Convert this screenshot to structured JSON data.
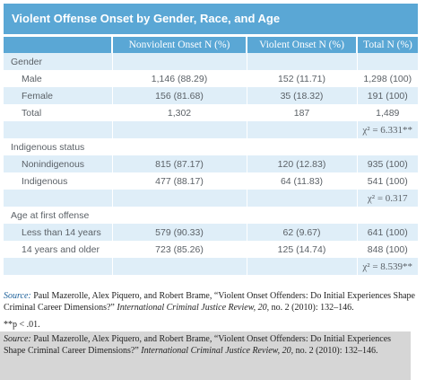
{
  "title": "Violent Offense Onset by Gender, Race, and Age",
  "columns": [
    "",
    "Nonviolent Onset N (%)",
    "Violent Onset N (%)",
    "Total N (%)"
  ],
  "sections": [
    {
      "label": "Gender",
      "rows": [
        {
          "label": "Male",
          "nonviolent": "1,146 (88.29)",
          "violent": "152 (11.71)",
          "total": "1,298 (100)"
        },
        {
          "label": "Female",
          "nonviolent": "156 (81.68)",
          "violent": "35 (18.32)",
          "total": "191 (100)"
        },
        {
          "label": "Total",
          "nonviolent": "1,302",
          "violent": "187",
          "total": "1,489"
        }
      ],
      "stat": "χ² = 6.331**"
    },
    {
      "label": "Indigenous status",
      "rows": [
        {
          "label": "Nonindigenous",
          "nonviolent": "815 (87.17)",
          "violent": "120 (12.83)",
          "total": "935 (100)"
        },
        {
          "label": "Indigenous",
          "nonviolent": "477 (88.17)",
          "violent": "64 (11.83)",
          "total": "541 (100)"
        }
      ],
      "stat": "χ² = 0.317"
    },
    {
      "label": "Age at first offense",
      "rows": [
        {
          "label": "Less than 14 years",
          "nonviolent": "579 (90.33)",
          "violent": "62 (9.67)",
          "total": "641 (100)"
        },
        {
          "label": "14 years and older",
          "nonviolent": "723 (85.26)",
          "violent": "125 (14.74)",
          "total": "848 (100)"
        }
      ],
      "stat": "χ² = 8.539**"
    }
  ],
  "source_top": {
    "label": "Source:",
    "text_before": "Paul Mazerolle, Alex Piquero, and Robert Brame, “Violent Onset Offenders: Do Initial Experiences Shape Criminal Career Dimensions?”",
    "journal": "International Criminal Justice Review, 20,",
    "text_after": "no. 2 (2010): 132–146."
  },
  "footnote": "**p < .01.",
  "source_bottom": {
    "label": "Source:",
    "text_before": "Paul Mazerolle, Alex Piquero, and Robert Brame, “Violent Onset Offenders: Do Initial Experiences Shape Criminal Career Dimensions?”",
    "journal": "International Criminal Justice Review, 20,",
    "text_after": "no. 2 (2010): 132–146."
  }
}
